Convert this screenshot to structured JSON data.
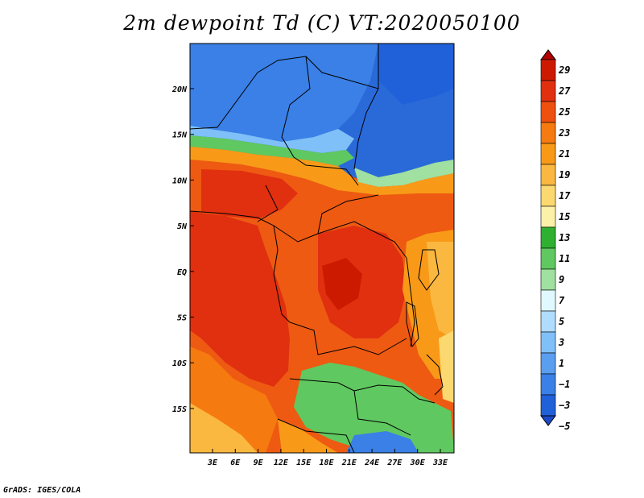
{
  "title": "2m dewpoint Td (C) VT:2020050100",
  "footer": "GrADS: IGES/COLA",
  "map": {
    "lat_labels": [
      "20N",
      "15N",
      "10N",
      "5N",
      "EQ",
      "5S",
      "10S",
      "15S"
    ],
    "lon_labels": [
      "3E",
      "6E",
      "9E",
      "12E",
      "15E",
      "18E",
      "21E",
      "24E",
      "27E",
      "30E",
      "33E"
    ]
  },
  "colorbar": {
    "levels": [
      "29",
      "27",
      "25",
      "23",
      "21",
      "19",
      "17",
      "15",
      "13",
      "11",
      "9",
      "7",
      "5",
      "3",
      "1",
      "−1",
      "−3",
      "−5"
    ],
    "colors": [
      "#b00000",
      "#cc1a00",
      "#e03010",
      "#ee5010",
      "#f57a10",
      "#f89a18",
      "#fab840",
      "#fcd870",
      "#fdf0a8",
      "#30b030",
      "#60c860",
      "#a0e0a0",
      "#e0f8ff",
      "#b0dcff",
      "#80c0f8",
      "#5a9ef0",
      "#3a80e6",
      "#2060d8",
      "#1a4ac8"
    ]
  }
}
